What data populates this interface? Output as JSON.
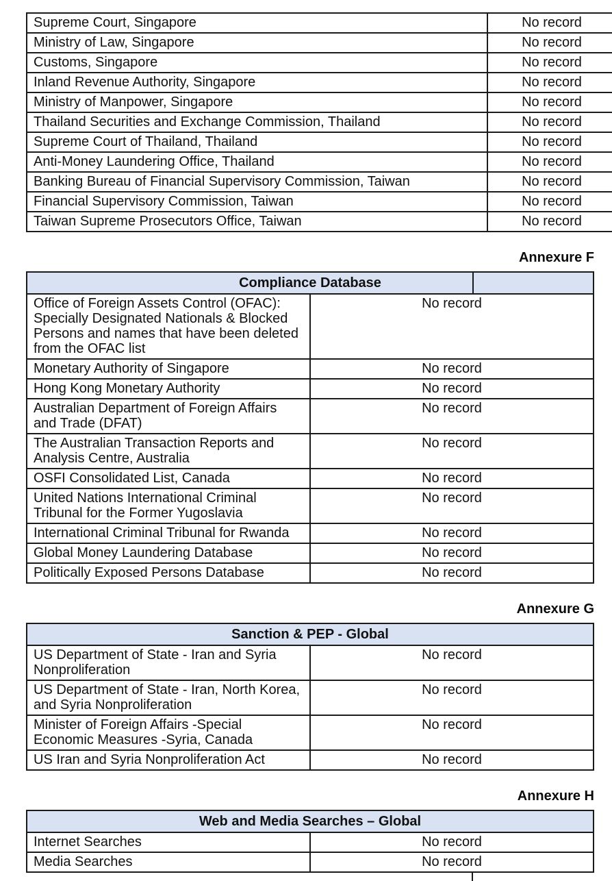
{
  "colors": {
    "header_bg": "#d9e2f3",
    "border": "#1b1b1b",
    "text": "#111111"
  },
  "result_label_default": "No record",
  "tables": [
    {
      "name": "regulatory-and-law-enforcement-sources",
      "rows": [
        {
          "source": "Supreme Court, Singapore",
          "result": "No record"
        },
        {
          "source": "Ministry of Law, Singapore",
          "result": "No record"
        },
        {
          "source": "Customs, Singapore",
          "result": "No record"
        },
        {
          "source": "Inland Revenue Authority, Singapore",
          "result": "No record"
        },
        {
          "source": "Ministry of Manpower, Singapore",
          "result": "No record"
        },
        {
          "source": "Thailand Securities and Exchange Commission, Thailand",
          "result": "No record"
        },
        {
          "source": "Supreme Court of Thailand, Thailand",
          "result": "No record"
        },
        {
          "source": "Anti-Money Laundering Office, Thailand",
          "result": "No record"
        },
        {
          "source": "Banking Bureau of Financial Supervisory Commission, Taiwan",
          "result": "No record"
        },
        {
          "source": "Financial Supervisory Commission, Taiwan",
          "result": "No record"
        },
        {
          "source": "Taiwan Supreme Prosecutors Office, Taiwan",
          "result": "No record"
        }
      ]
    },
    {
      "name": "compliance-database",
      "annexure": "Annexure F",
      "title": "Compliance Database",
      "rows": [
        {
          "source": "Office of Foreign Assets Control (OFAC): Specially Designated Nationals & Blocked Persons and names that have been deleted from the OFAC list",
          "result": "No record"
        },
        {
          "source": "Monetary Authority of Singapore",
          "result": "No record"
        },
        {
          "source": "Hong Kong Monetary Authority",
          "result": "No record"
        },
        {
          "source": "Australian Department of Foreign Affairs and Trade (DFAT)",
          "result": "No record"
        },
        {
          "source": "The Australian Transaction Reports and Analysis Centre, Australia",
          "result": "No record"
        },
        {
          "source": "OSFI Consolidated List, Canada",
          "result": "No record"
        },
        {
          "source": "United Nations International Criminal Tribunal for the Former Yugoslavia",
          "result": "No record"
        },
        {
          "source": "International Criminal Tribunal for Rwanda",
          "result": "No record"
        },
        {
          "source": "Global Money Laundering Database",
          "result": "No record"
        },
        {
          "source": "Politically Exposed Persons Database",
          "result": "No record"
        }
      ]
    },
    {
      "name": "sanction-pep-global",
      "annexure": "Annexure G",
      "title": "Sanction & PEP - Global",
      "rows": [
        {
          "source": "US Department of State - Iran and Syria Nonproliferation",
          "result": "No record"
        },
        {
          "source": "US Department of State - Iran, North Korea, and Syria Nonproliferation",
          "result": "No record"
        },
        {
          "source": "Minister of Foreign Affairs -Special Economic Measures -Syria, Canada",
          "result": "No record"
        },
        {
          "source": "US Iran and Syria Nonproliferation Act",
          "result": "No record"
        }
      ]
    },
    {
      "name": "web-and-media-searches-global",
      "annexure": "Annexure H",
      "title": "Web and Media Searches – Global",
      "rows": [
        {
          "source": "Internet Searches",
          "result": "No record"
        },
        {
          "source": "Media Searches",
          "result": "No record"
        }
      ]
    }
  ]
}
